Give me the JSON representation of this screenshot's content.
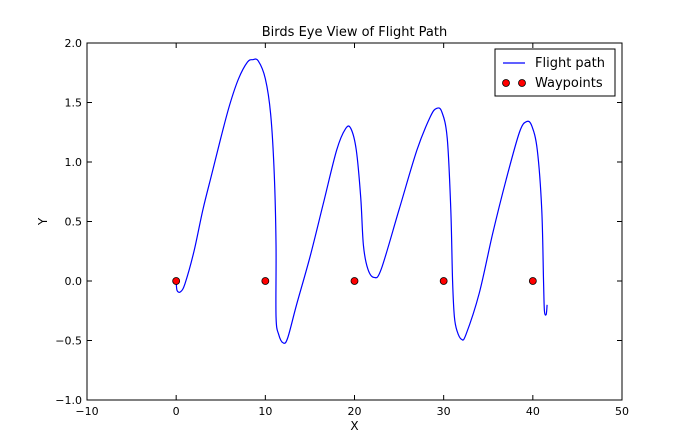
{
  "chart_data": {
    "type": "line",
    "title": "Birds Eye View of Flight Path",
    "xlabel": "X",
    "ylabel": "Y",
    "xlim": [
      -10,
      50
    ],
    "ylim": [
      -1.0,
      2.0
    ],
    "xticks": [
      -10,
      0,
      10,
      20,
      30,
      40,
      50
    ],
    "xtick_labels": [
      "−10",
      "0",
      "10",
      "20",
      "30",
      "40",
      "50"
    ],
    "yticks": [
      -1.0,
      -0.5,
      0.0,
      0.5,
      1.0,
      1.5,
      2.0
    ],
    "ytick_labels": [
      "−1.0",
      "−0.5",
      "0.0",
      "0.5",
      "1.0",
      "1.5",
      "2.0"
    ],
    "grid": false,
    "legend_position": "top-right",
    "series": [
      {
        "name": "Flight path",
        "kind": "line",
        "color": "#0000ff",
        "points": [
          [
            0,
            0
          ],
          [
            0.1,
            -0.08
          ],
          [
            0.5,
            -0.09
          ],
          [
            1,
            -0.02
          ],
          [
            2,
            0.25
          ],
          [
            3,
            0.6
          ],
          [
            4,
            0.9
          ],
          [
            5,
            1.2
          ],
          [
            6,
            1.48
          ],
          [
            7,
            1.7
          ],
          [
            8,
            1.84
          ],
          [
            8.6,
            1.86
          ],
          [
            9.2,
            1.85
          ],
          [
            10,
            1.7
          ],
          [
            10.6,
            1.4
          ],
          [
            11,
            0.9
          ],
          [
            11.2,
            0.3
          ],
          [
            11.2,
            -0.3
          ],
          [
            11.5,
            -0.45
          ],
          [
            12,
            -0.52
          ],
          [
            12.5,
            -0.48
          ],
          [
            13.5,
            -0.2
          ],
          [
            15,
            0.2
          ],
          [
            16.5,
            0.65
          ],
          [
            18,
            1.1
          ],
          [
            19,
            1.28
          ],
          [
            19.6,
            1.28
          ],
          [
            20.2,
            1.1
          ],
          [
            20.7,
            0.7
          ],
          [
            21,
            0.3
          ],
          [
            21.5,
            0.1
          ],
          [
            22.2,
            0.03
          ],
          [
            23,
            0.1
          ],
          [
            25,
            0.6
          ],
          [
            27,
            1.1
          ],
          [
            28.5,
            1.38
          ],
          [
            29.2,
            1.45
          ],
          [
            29.8,
            1.42
          ],
          [
            30.4,
            1.2
          ],
          [
            30.8,
            0.6
          ],
          [
            31,
            0.0
          ],
          [
            31.2,
            -0.3
          ],
          [
            31.5,
            -0.42
          ],
          [
            32,
            -0.49
          ],
          [
            32.5,
            -0.45
          ],
          [
            34,
            -0.1
          ],
          [
            35.5,
            0.4
          ],
          [
            37,
            0.85
          ],
          [
            38.5,
            1.25
          ],
          [
            39.3,
            1.34
          ],
          [
            39.9,
            1.3
          ],
          [
            40.5,
            1.1
          ],
          [
            41,
            0.6
          ],
          [
            41.2,
            0.0
          ],
          [
            41.3,
            -0.25
          ],
          [
            41.5,
            -0.28
          ],
          [
            41.6,
            -0.2
          ]
        ]
      },
      {
        "name": "Waypoints",
        "kind": "scatter",
        "color": "#ff0000",
        "points": [
          [
            0,
            0
          ],
          [
            10,
            0
          ],
          [
            20,
            0
          ],
          [
            30,
            0
          ],
          [
            40,
            0
          ]
        ]
      }
    ]
  }
}
